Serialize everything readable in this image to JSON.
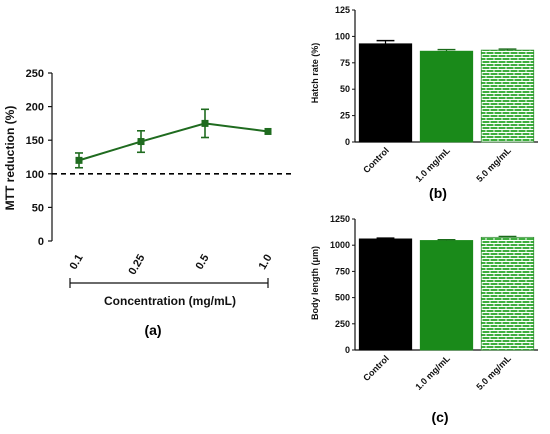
{
  "chart_data": [
    {
      "type": "line",
      "panel_label": "(a)",
      "xlabel": "Concentration (mg/mL)",
      "ylabel": "MTT reduction (%)",
      "x": [
        "0.1",
        "0.25",
        "0.5",
        "1.0"
      ],
      "series": [
        {
          "values": [
            120,
            148,
            175,
            163
          ],
          "errors": [
            11,
            16,
            21,
            0
          ]
        }
      ],
      "reference_line": 100,
      "ylim": [
        0,
        250
      ],
      "yticks": [
        "0",
        "50",
        "100",
        "150",
        "200",
        "250"
      ],
      "colors": {
        "series": "#1f6b1f",
        "reference": "#000000"
      }
    },
    {
      "type": "bar",
      "panel_label": "(b)",
      "ylabel": "Hatch rate (%)",
      "categories": [
        "Control",
        "1.0 mg/mL",
        "5.0 mg/mL"
      ],
      "values": [
        93,
        86,
        87
      ],
      "errors": [
        3,
        1.5,
        1
      ],
      "ylim": [
        0,
        125
      ],
      "yticks": [
        "0",
        "25",
        "50",
        "75",
        "100",
        "125"
      ],
      "colors": [
        "#000000",
        "#1a8a1a",
        "#3fae3f"
      ],
      "fills": [
        "solid",
        "solid",
        "brick-pattern"
      ]
    },
    {
      "type": "bar",
      "panel_label": "(c)",
      "ylabel": "Body length (μm)",
      "categories": [
        "Control",
        "1.0 mg/mL",
        "5.0 mg/mL"
      ],
      "values": [
        1060,
        1045,
        1075
      ],
      "errors": [
        8,
        8,
        8
      ],
      "ylim": [
        0,
        1250
      ],
      "yticks": [
        "0",
        "250",
        "500",
        "750",
        "1000",
        "1250"
      ],
      "colors": [
        "#000000",
        "#1a8a1a",
        "#3fae3f"
      ],
      "fills": [
        "solid",
        "solid",
        "brick-pattern"
      ]
    }
  ]
}
